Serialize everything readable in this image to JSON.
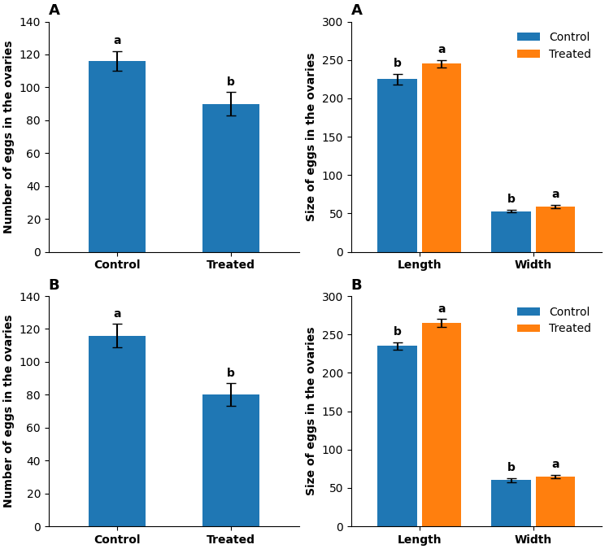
{
  "chart_data": [
    {
      "type": "bar",
      "title": "A",
      "categories": [
        "Control",
        "Treated"
      ],
      "values": [
        116,
        90
      ],
      "errors": [
        6,
        7
      ],
      "annotations": [
        "a",
        "b"
      ],
      "ylabel": "Number of eggs in the ovaries",
      "ylim": [
        0,
        140
      ],
      "yticks": [
        0,
        20,
        40,
        60,
        80,
        100,
        120,
        140
      ]
    },
    {
      "type": "bar",
      "title": "A",
      "categories": [
        "Length",
        "Width"
      ],
      "series": [
        {
          "name": "Control",
          "values": [
            225,
            53
          ],
          "errors": [
            7,
            2
          ],
          "annotations": [
            "b",
            "b"
          ]
        },
        {
          "name": "Treated",
          "values": [
            245,
            59
          ],
          "errors": [
            5,
            2
          ],
          "annotations": [
            "a",
            "a"
          ]
        }
      ],
      "ylabel": "Size of eggs in the ovaries",
      "ylim": [
        0,
        300
      ],
      "yticks": [
        0,
        50,
        100,
        150,
        200,
        250,
        300
      ],
      "legend": "upper right"
    },
    {
      "type": "bar",
      "title": "B",
      "categories": [
        "Control",
        "Treated"
      ],
      "values": [
        116,
        80
      ],
      "errors": [
        7,
        7
      ],
      "annotations": [
        "a",
        "b"
      ],
      "ylabel": "Number of eggs in the ovaries",
      "ylim": [
        0,
        140
      ],
      "yticks": [
        0,
        20,
        40,
        60,
        80,
        100,
        120,
        140
      ]
    },
    {
      "type": "bar",
      "title": "B",
      "categories": [
        "Length",
        "Width"
      ],
      "series": [
        {
          "name": "Control",
          "values": [
            235,
            60
          ],
          "errors": [
            5,
            3
          ],
          "annotations": [
            "b",
            "b"
          ]
        },
        {
          "name": "Treated",
          "values": [
            265,
            65
          ],
          "errors": [
            5,
            2
          ],
          "annotations": [
            "a",
            "a"
          ]
        }
      ],
      "ylabel": "Size of eggs in the ovaries",
      "ylim": [
        0,
        300
      ],
      "yticks": [
        0,
        50,
        100,
        150,
        200,
        250,
        300
      ],
      "legend": "upper right"
    }
  ]
}
